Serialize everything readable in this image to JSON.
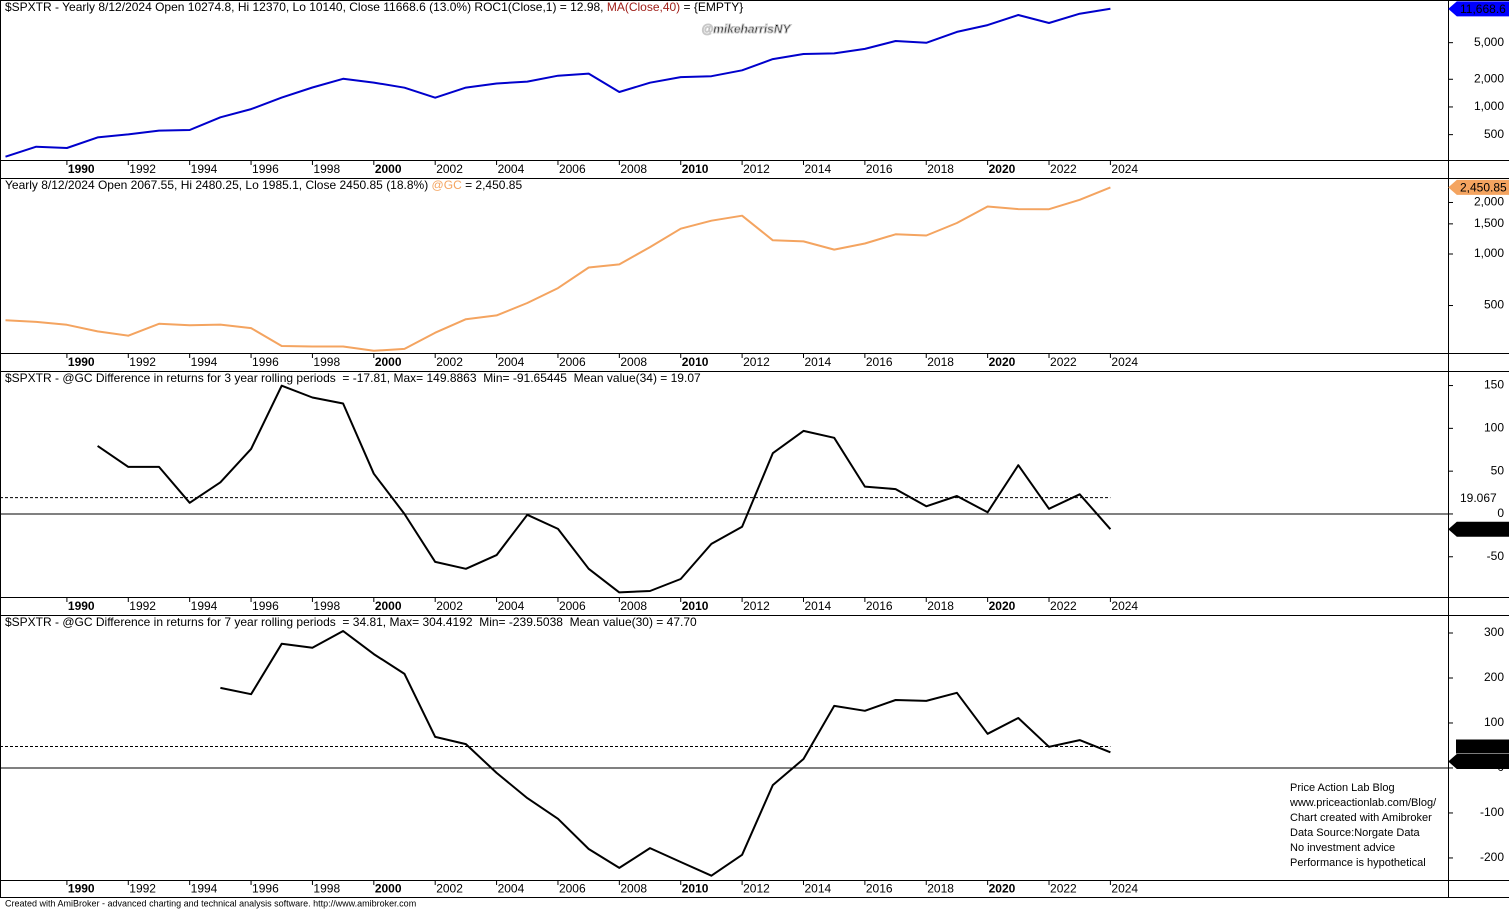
{
  "chart_data": [
    {
      "type": "line",
      "title": [
        {
          "text": "$SPXTR - Yearly 8/12/2024 Open 10274.8, Hi 12370, Lo 10140, Close 11668.6 (13.0%) ROC1(Close,1) = 12.98, ",
          "color": "#000000"
        },
        {
          "text": "MA(Close,40)",
          "color": "#a0201a"
        },
        {
          "text": " = {EMPTY}",
          "color": "#000000"
        }
      ],
      "watermark": "@mikeharrisNY",
      "log_scale": true,
      "x": [
        1988,
        1989,
        1990,
        1991,
        1992,
        1993,
        1994,
        1995,
        1996,
        1997,
        1998,
        1999,
        2000,
        2001,
        2002,
        2003,
        2004,
        2005,
        2006,
        2007,
        2008,
        2009,
        2010,
        2011,
        2012,
        2013,
        2014,
        2015,
        2016,
        2017,
        2018,
        2019,
        2020,
        2021,
        2022,
        2023,
        2024
      ],
      "xlim": [
        1987.82,
        2035
      ],
      "xticks": [
        1990,
        1992,
        1994,
        1996,
        1998,
        2000,
        2002,
        2004,
        2006,
        2008,
        2010,
        2012,
        2014,
        2016,
        2018,
        2020,
        2022,
        2024
      ],
      "ylim": [
        265,
        14550
      ],
      "yticks": [
        500,
        {
          "value": 1000,
          "label": "1,000"
        },
        {
          "value": 2000,
          "label": "2,000"
        },
        {
          "value": 5000,
          "label": "5,000"
        }
      ],
      "series": [
        {
          "name": "$SPXTR",
          "color": "#0000cc",
          "values": [
            288,
            370,
            358,
            467,
            503,
            553,
            561,
            771,
            948,
            1265,
            1626,
            2022,
            1838,
            1619,
            1261,
            1623,
            1800,
            1888,
            2186,
            2306,
            1453,
            1837,
            2114,
            2159,
            2504,
            3315,
            3768,
            3821,
            4278,
            5212,
            4983,
            6552,
            7758,
            9985,
            8177,
            10327,
            11668.6
          ]
        }
      ],
      "markers": [
        {
          "value": 11668.6,
          "label": "11,668.6",
          "kind": "last",
          "color": "#0000ff"
        }
      ]
    },
    {
      "type": "line",
      "title": [
        {
          "text": "Yearly 8/12/2024 Open 2067.55, Hi 2480.25, Lo 1985.1, Close 2450.85 (18.8%) ",
          "color": "#000000"
        },
        {
          "text": "@GC",
          "color": "#f4a460"
        },
        {
          "text": " = 2,450.85",
          "color": "#000000"
        }
      ],
      "log_scale": true,
      "x": [
        1988,
        1989,
        1990,
        1991,
        1992,
        1993,
        1994,
        1995,
        1996,
        1997,
        1998,
        1999,
        2000,
        2001,
        2002,
        2003,
        2004,
        2005,
        2006,
        2007,
        2008,
        2009,
        2010,
        2011,
        2012,
        2013,
        2014,
        2015,
        2016,
        2017,
        2018,
        2019,
        2020,
        2021,
        2022,
        2023,
        2024
      ],
      "xlim": [
        1987.82,
        2035
      ],
      "xticks": [
        1990,
        1992,
        1994,
        1996,
        1998,
        2000,
        2002,
        2004,
        2006,
        2008,
        2010,
        2012,
        2014,
        2016,
        2018,
        2020,
        2022,
        2024
      ],
      "ylim": [
        264,
        2780
      ],
      "yticks": [
        500,
        {
          "value": 1000,
          "label": "1,000"
        },
        {
          "value": 1500,
          "label": "1,500"
        },
        {
          "value": 2000,
          "label": "2,000"
        }
      ],
      "series": [
        {
          "name": "@GC",
          "color": "#f4a460",
          "values": [
            410,
            401,
            386,
            353,
            333,
            391,
            383,
            387,
            369,
            290,
            288,
            288,
            272,
            279,
            347,
            416,
            438,
            517,
            632,
            834,
            870,
            1097,
            1405,
            1566,
            1675,
            1202,
            1184,
            1061,
            1152,
            1303,
            1283,
            1517,
            1895,
            1829,
            1826,
            2072,
            2450.85
          ]
        }
      ],
      "markers": [
        {
          "value": 2450.85,
          "label": "2,450.85",
          "kind": "last",
          "color": "#f4a460"
        }
      ]
    },
    {
      "type": "line",
      "title": [
        {
          "text": "$SPXTR - @GC Difference in returns for 3 year rolling periods  = -17.81, Max= 149.8863  Min= -91.65445  Mean value(34) = 19.07",
          "color": "#000000"
        }
      ],
      "log_scale": false,
      "zero_line": true,
      "x": [
        1988,
        1989,
        1990,
        1991,
        1992,
        1993,
        1994,
        1995,
        1996,
        1997,
        1998,
        1999,
        2000,
        2001,
        2002,
        2003,
        2004,
        2005,
        2006,
        2007,
        2008,
        2009,
        2010,
        2011,
        2012,
        2013,
        2014,
        2015,
        2016,
        2017,
        2018,
        2019,
        2020,
        2021,
        2022,
        2023,
        2024
      ],
      "xlim": [
        1987.82,
        2035
      ],
      "xticks": [
        1990,
        1992,
        1994,
        1996,
        1998,
        2000,
        2002,
        2004,
        2006,
        2008,
        2010,
        2012,
        2014,
        2016,
        2018,
        2020,
        2022,
        2024
      ],
      "ylim": [
        -97,
        167
      ],
      "yticks": [
        -50,
        0,
        50,
        100,
        150
      ],
      "series": [
        {
          "name": "3 year difference",
          "color": "#000000",
          "values": [
            null,
            null,
            null,
            79.5,
            55,
            55,
            13,
            37,
            76,
            149.8863,
            136,
            129,
            47,
            0,
            -56,
            -64,
            -48,
            -1,
            -17.5,
            -64,
            -91.65445,
            -90,
            -76,
            -35,
            -15,
            71,
            97,
            89,
            32,
            29,
            9,
            21,
            2,
            57,
            6,
            23,
            -17.81
          ]
        }
      ],
      "markers": [
        {
          "value": 19.067,
          "kind": "mean",
          "color": "#ffffff"
        },
        {
          "value": -17.8134,
          "kind": "last",
          "color": "#000000"
        }
      ]
    },
    {
      "type": "line",
      "title": [
        {
          "text": "$SPXTR - @GC Difference in returns for 7 year rolling periods  = 34.81, Max= 304.4192  Min= -239.5038  Mean value(30) = 47.70",
          "color": "#000000"
        }
      ],
      "log_scale": false,
      "zero_line": true,
      "x": [
        1988,
        1989,
        1990,
        1991,
        1992,
        1993,
        1994,
        1995,
        1996,
        1997,
        1998,
        1999,
        2000,
        2001,
        2002,
        2003,
        2004,
        2005,
        2006,
        2007,
        2008,
        2009,
        2010,
        2011,
        2012,
        2013,
        2014,
        2015,
        2016,
        2017,
        2018,
        2019,
        2020,
        2021,
        2022,
        2023,
        2024
      ],
      "xlim": [
        1987.82,
        2035
      ],
      "xticks": [
        1990,
        1992,
        1994,
        1996,
        1998,
        2000,
        2002,
        2004,
        2006,
        2008,
        2010,
        2012,
        2014,
        2016,
        2018,
        2020,
        2022,
        2024
      ],
      "ylim": [
        -249,
        340
      ],
      "yticks": [
        -200,
        -100,
        0,
        100,
        200,
        300
      ],
      "series": [
        {
          "name": "7 year difference",
          "color": "#000000",
          "values": [
            null,
            null,
            null,
            null,
            null,
            null,
            null,
            178,
            164,
            276,
            267,
            304.4192,
            253,
            209,
            69,
            53,
            -11,
            -67,
            -113,
            -180,
            -222,
            -178,
            -209,
            -239.5038,
            -193,
            -38,
            20,
            138,
            127,
            151,
            149,
            167,
            76,
            111,
            47,
            62,
            34.81
          ]
        }
      ],
      "markers": [
        {
          "value": 47.6973,
          "kind": "mean",
          "color": "#000000"
        },
        {
          "value": 34.8108,
          "kind": "last",
          "color": "#000000"
        }
      ],
      "notes": [
        "Price Action Lab Blog",
        "www.priceactionlab.com/Blog/",
        "Chart created with Amibroker",
        "Data Source:Norgate Data",
        "No investment advice",
        "Performance is hypothetical"
      ]
    }
  ],
  "footer": "Created with AmiBroker - advanced charting and technical analysis software. http://www.amibroker.com"
}
